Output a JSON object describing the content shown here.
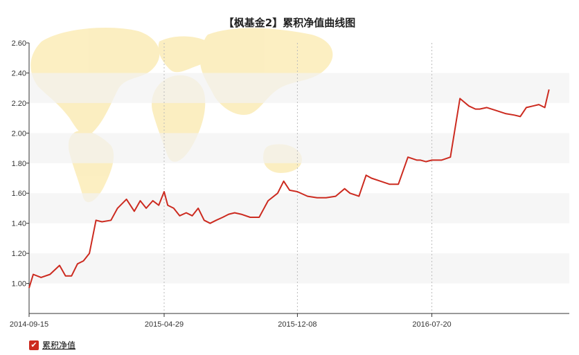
{
  "chart_data": {
    "type": "line",
    "title": "【枫基金2】累积净值曲线图",
    "xlabel": "",
    "ylabel": "",
    "ylim": [
      0.8,
      2.6
    ],
    "yticks": [
      "1.00",
      "1.20",
      "1.40",
      "1.60",
      "1.80",
      "2.00",
      "2.20",
      "2.40",
      "2.60"
    ],
    "xticks": [
      "2014-09-15",
      "2015-04-29",
      "2015-12-08",
      "2016-07-20"
    ],
    "grid": "horizontal bands, vertical dashed lines",
    "legend": "bottom-left",
    "color": "#cc2a1f",
    "series": [
      {
        "name": "累积净值",
        "x": [
          "2014-09-15",
          "2014-09-22",
          "2014-10-05",
          "2014-10-20",
          "2014-11-05",
          "2014-11-15",
          "2014-11-25",
          "2014-12-05",
          "2014-12-15",
          "2014-12-25",
          "2015-01-05",
          "2015-01-15",
          "2015-01-30",
          "2015-02-10",
          "2015-02-25",
          "2015-03-10",
          "2015-03-20",
          "2015-03-30",
          "2015-04-10",
          "2015-04-20",
          "2015-04-29",
          "2015-05-05",
          "2015-05-15",
          "2015-05-25",
          "2015-06-05",
          "2015-06-15",
          "2015-06-25",
          "2015-07-05",
          "2015-07-15",
          "2015-07-25",
          "2015-08-05",
          "2015-08-15",
          "2015-08-25",
          "2015-09-05",
          "2015-09-20",
          "2015-10-05",
          "2015-10-20",
          "2015-11-05",
          "2015-11-15",
          "2015-11-25",
          "2015-12-08",
          "2015-12-25",
          "2016-01-10",
          "2016-01-25",
          "2016-02-10",
          "2016-02-25",
          "2016-03-05",
          "2016-03-20",
          "2016-04-01",
          "2016-04-10",
          "2016-04-25",
          "2016-05-10",
          "2016-05-25",
          "2016-06-10",
          "2016-06-25",
          "2016-07-01",
          "2016-07-10",
          "2016-07-20",
          "2016-08-05",
          "2016-08-20",
          "2016-09-05",
          "2016-09-20",
          "2016-10-01",
          "2016-10-08",
          "2016-10-20",
          "2016-11-05",
          "2016-11-20",
          "2016-12-05",
          "2016-12-15",
          "2016-12-25",
          "2017-01-05",
          "2017-01-15",
          "2017-01-25",
          "2017-02-01"
        ],
        "values": [
          0.97,
          1.06,
          1.04,
          1.06,
          1.12,
          1.05,
          1.05,
          1.13,
          1.15,
          1.2,
          1.42,
          1.41,
          1.42,
          1.5,
          1.56,
          1.48,
          1.55,
          1.5,
          1.55,
          1.52,
          1.61,
          1.52,
          1.5,
          1.45,
          1.47,
          1.45,
          1.5,
          1.42,
          1.4,
          1.42,
          1.44,
          1.46,
          1.47,
          1.46,
          1.44,
          1.44,
          1.55,
          1.6,
          1.68,
          1.62,
          1.61,
          1.58,
          1.57,
          1.57,
          1.58,
          1.63,
          1.6,
          1.58,
          1.72,
          1.7,
          1.68,
          1.66,
          1.66,
          1.84,
          1.82,
          1.82,
          1.81,
          1.82,
          1.82,
          1.84,
          2.23,
          2.18,
          2.16,
          2.16,
          2.17,
          2.15,
          2.13,
          2.12,
          2.11,
          2.17,
          2.18,
          2.19,
          2.17,
          2.29
        ]
      }
    ]
  },
  "legend": {
    "check": "✔",
    "label": "累积净值"
  }
}
